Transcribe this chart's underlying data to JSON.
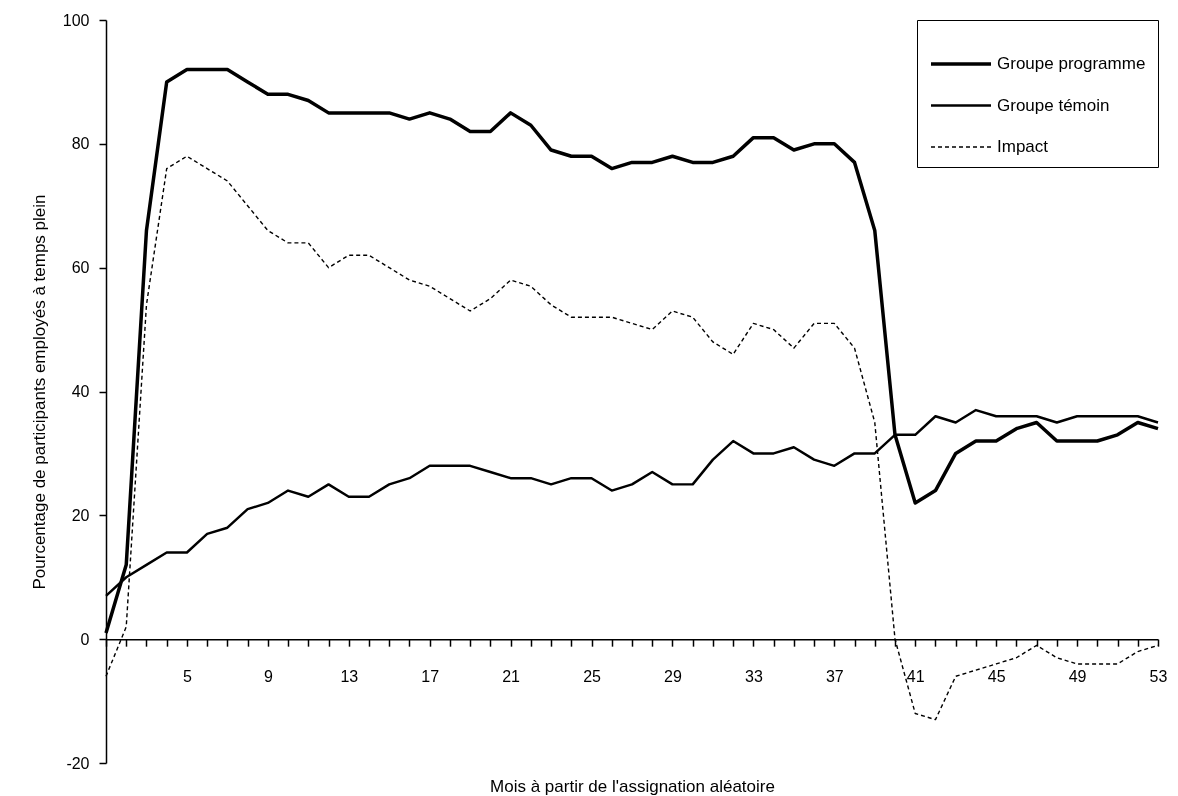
{
  "chart_data": {
    "type": "line",
    "xlabel": "Mois à partir de l'assignation aléatoire",
    "ylabel": "Pourcentage de participants employés à temps plein",
    "x": [
      1,
      2,
      3,
      4,
      5,
      6,
      7,
      8,
      9,
      10,
      11,
      12,
      13,
      14,
      15,
      16,
      17,
      18,
      19,
      20,
      21,
      22,
      23,
      24,
      25,
      26,
      27,
      28,
      29,
      30,
      31,
      32,
      33,
      34,
      35,
      36,
      37,
      38,
      39,
      40,
      41,
      42,
      43,
      44,
      45,
      46,
      47,
      48,
      49,
      50,
      51,
      52,
      53
    ],
    "series": [
      {
        "name": "Groupe programme",
        "color": "#000000",
        "line_style": "solid",
        "values": [
          1,
          12,
          66,
          90,
          92,
          92,
          92,
          90,
          88,
          88,
          87,
          85,
          85,
          85,
          85,
          84,
          85,
          84,
          82,
          82,
          85,
          83,
          79,
          78,
          78,
          76,
          77,
          77,
          78,
          77,
          77,
          78,
          81,
          81,
          79,
          80,
          80,
          77,
          66,
          33,
          22,
          24,
          30,
          32,
          32,
          34,
          35,
          32,
          32,
          32,
          33,
          35,
          34
        ]
      },
      {
        "name": "Groupe témoin",
        "color": "#000000",
        "line_style": "solid",
        "values": [
          7,
          10,
          12,
          14,
          14,
          17,
          18,
          21,
          22,
          24,
          23,
          25,
          23,
          23,
          25,
          26,
          28,
          28,
          28,
          27,
          26,
          26,
          25,
          26,
          26,
          24,
          25,
          27,
          25,
          25,
          29,
          32,
          30,
          30,
          31,
          29,
          28,
          30,
          30,
          33,
          33,
          36,
          35,
          37,
          36,
          36,
          36,
          35,
          36,
          36,
          36,
          36,
          35
        ]
      },
      {
        "name": "Impact",
        "color": "#000000",
        "line_style": "dashed",
        "values": [
          -6,
          2,
          54,
          76,
          78,
          76,
          74,
          70,
          66,
          64,
          64,
          60,
          62,
          62,
          60,
          58,
          57,
          55,
          53,
          55,
          58,
          57,
          54,
          52,
          52,
          52,
          51,
          50,
          53,
          52,
          48,
          46,
          51,
          50,
          47,
          51,
          51,
          47,
          35,
          0,
          -12,
          -13,
          -6,
          -5,
          -4,
          -3,
          -1,
          -3,
          -4,
          -4,
          -4,
          -2,
          -1
        ]
      }
    ],
    "xlim": [
      1,
      53
    ],
    "xticks": [
      {
        "value": 1,
        "label": null
      },
      {
        "value": 2,
        "label": null
      },
      {
        "value": 3,
        "label": null
      },
      {
        "value": 4,
        "label": null
      },
      5,
      {
        "value": 6,
        "label": null
      },
      {
        "value": 7,
        "label": null
      },
      {
        "value": 8,
        "label": null
      },
      9,
      {
        "value": 10,
        "label": null
      },
      {
        "value": 11,
        "label": null
      },
      {
        "value": 12,
        "label": null
      },
      13,
      {
        "value": 14,
        "label": null
      },
      {
        "value": 15,
        "label": null
      },
      {
        "value": 16,
        "label": null
      },
      17,
      {
        "value": 18,
        "label": null
      },
      {
        "value": 19,
        "label": null
      },
      {
        "value": 20,
        "label": null
      },
      21,
      {
        "value": 22,
        "label": null
      },
      {
        "value": 23,
        "label": null
      },
      {
        "value": 24,
        "label": null
      },
      25,
      {
        "value": 26,
        "label": null
      },
      {
        "value": 27,
        "label": null
      },
      {
        "value": 28,
        "label": null
      },
      29,
      {
        "value": 30,
        "label": null
      },
      {
        "value": 31,
        "label": null
      },
      {
        "value": 32,
        "label": null
      },
      33,
      {
        "value": 34,
        "label": null
      },
      {
        "value": 35,
        "label": null
      },
      {
        "value": 36,
        "label": null
      },
      37,
      {
        "value": 38,
        "label": null
      },
      {
        "value": 39,
        "label": null
      },
      {
        "value": 40,
        "label": null
      },
      41,
      {
        "value": 42,
        "label": null
      },
      {
        "value": 43,
        "label": null
      },
      {
        "value": 44,
        "label": null
      },
      45,
      {
        "value": 46,
        "label": null
      },
      {
        "value": 47,
        "label": null
      },
      {
        "value": 48,
        "label": null
      },
      49,
      {
        "value": 50,
        "label": null
      },
      {
        "value": 51,
        "label": null
      },
      {
        "value": 52,
        "label": null
      },
      53
    ],
    "ylim": [
      -20,
      100
    ],
    "yticks": [
      -20,
      0,
      20,
      40,
      60,
      80,
      100
    ],
    "grid": false,
    "legend": "top right",
    "marker": "none"
  }
}
